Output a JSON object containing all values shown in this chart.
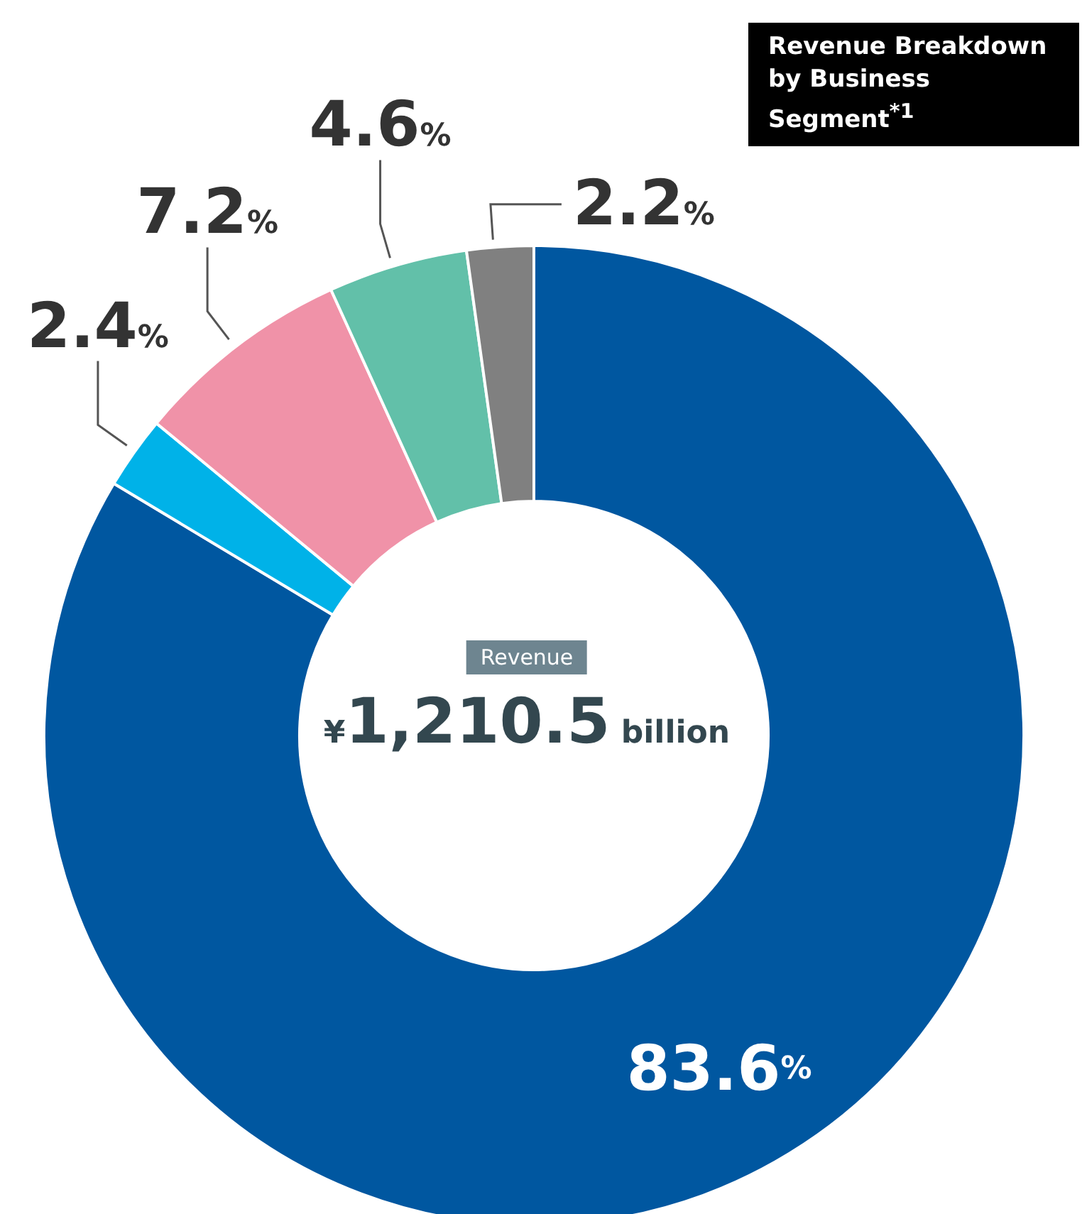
{
  "chart_data": {
    "type": "donut",
    "title": "Revenue Breakdown by Business Segment$^{*1}$",
    "categories": [
      null,
      null,
      null,
      null,
      null
    ],
    "values": [
      83.6,
      2.4,
      7.2,
      4.6,
      2.2
    ],
    "colors": [
      "#0057a0",
      "#00b2e8",
      "#f092a8",
      "#62c0a9",
      "#808080"
    ],
    "value_labels": [
      "83.6%",
      "2.4%",
      "7.2%",
      "4.6%",
      "2.2%"
    ],
    "annotations": [
      "Revenue",
      "¥1,210.5 billion"
    ],
    "legend": false
  }
}
